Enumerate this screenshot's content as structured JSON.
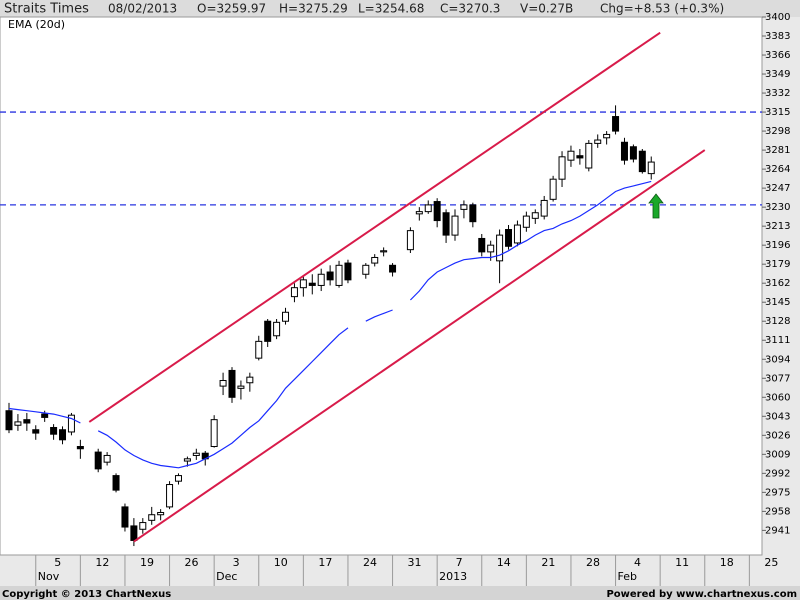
{
  "chart_data": {
    "type": "candlestick",
    "title": "Straits Times",
    "header_items": [
      "08/02/2013",
      "O=3259.97",
      "H=3275.29",
      "L=3254.68",
      "C=3270.3",
      "V=0.27B",
      "Chg=+8.53 (+0.3%)"
    ],
    "footer_left": "Copyright © 2013 ChartNexus",
    "footer_right": "Powered by www.chartnexus.com",
    "categories": [
      null,
      null,
      null,
      "5",
      null,
      null,
      null,
      null,
      "12",
      null,
      null,
      null,
      null,
      "19",
      null,
      null,
      null,
      null,
      "26",
      null,
      null,
      null,
      null,
      "3",
      null,
      null,
      null,
      null,
      "10",
      null,
      null,
      null,
      null,
      "17",
      null,
      null,
      null,
      null,
      "24",
      null,
      null,
      null,
      null,
      "31",
      null,
      null,
      null,
      null,
      "7",
      null,
      null,
      null,
      null,
      "14",
      null,
      null,
      null,
      null,
      "21",
      null,
      null,
      null,
      null,
      "28",
      null,
      null,
      null,
      null,
      "4",
      null,
      null,
      null,
      null,
      "11",
      null,
      null,
      null,
      null,
      "18",
      null,
      null,
      null,
      null,
      "25",
      null,
      null
    ],
    "month_labels": [
      null,
      null,
      null,
      "Nov",
      null,
      null,
      null,
      null,
      null,
      null,
      null,
      null,
      null,
      null,
      null,
      null,
      null,
      null,
      null,
      null,
      null,
      null,
      null,
      "Dec",
      null,
      null,
      null,
      null,
      null,
      null,
      null,
      null,
      null,
      null,
      null,
      null,
      null,
      null,
      null,
      null,
      null,
      null,
      null,
      null,
      null,
      null,
      null,
      null,
      "2013",
      null,
      null,
      null,
      null,
      null,
      null,
      null,
      null,
      null,
      null,
      null,
      null,
      null,
      null,
      null,
      null,
      null,
      null,
      null,
      "Feb",
      null,
      null,
      null,
      null,
      null,
      null,
      null,
      null,
      null,
      null,
      null,
      null,
      null,
      null,
      null,
      null,
      null
    ],
    "open": [
      3048,
      3035,
      3040,
      3031,
      3045,
      3033,
      3031,
      3029,
      3016,
      null,
      3011,
      3002,
      2990,
      2962,
      2945,
      2942,
      2950,
      2955,
      2962,
      2985,
      3003,
      3008,
      3010,
      3016,
      3070,
      3084,
      3068,
      3073,
      3095,
      3128,
      3115,
      3128,
      3150,
      3158,
      3162,
      3160,
      3172,
      3160,
      3180,
      null,
      3170,
      3180,
      3190,
      3178,
      null,
      3192,
      3224,
      3226,
      3235,
      3225,
      3205,
      3228,
      3232,
      3202,
      3190,
      3182,
      3210,
      3198,
      3212,
      3220,
      3222,
      3237,
      3255,
      3272,
      3276,
      3265,
      3287,
      3292,
      3311,
      3288,
      3284,
      3280,
      3259.97,
      null,
      null,
      null,
      null,
      null,
      null,
      null,
      null,
      null,
      null,
      null,
      null,
      null
    ],
    "high": [
      3055,
      3045,
      3046,
      3035,
      3048,
      3036,
      3034,
      3046,
      3022,
      null,
      3014,
      3011,
      2992,
      2965,
      2952,
      2952,
      2962,
      2960,
      2985,
      2992,
      3007,
      3014,
      3012,
      3044,
      3082,
      3087,
      3075,
      3082,
      3115,
      3130,
      3130,
      3140,
      3162,
      3168,
      3170,
      3175,
      3178,
      3182,
      3183,
      null,
      3180,
      3188,
      3194,
      3180,
      null,
      3212,
      3230,
      3236,
      3238,
      3228,
      3228,
      3236,
      3234,
      3206,
      3200,
      3210,
      3214,
      3218,
      3226,
      3228,
      3240,
      3258,
      3280,
      3285,
      3282,
      3290,
      3295,
      3298,
      3321,
      3292,
      3286,
      3282,
      3275.29,
      null,
      null,
      null,
      null,
      null,
      null,
      null,
      null,
      null,
      null,
      null,
      null,
      null
    ],
    "low": [
      3028,
      3030,
      3030,
      3022,
      3038,
      3022,
      3018,
      3026,
      3005,
      null,
      2993,
      2999,
      2975,
      2940,
      2927,
      2938,
      2946,
      2950,
      2960,
      2982,
      2998,
      3004,
      2999,
      3015,
      3062,
      3055,
      3058,
      3065,
      3093,
      3105,
      3112,
      3125,
      3145,
      3150,
      3152,
      3155,
      3160,
      3158,
      3162,
      null,
      3166,
      3177,
      3186,
      3168,
      null,
      3189,
      3218,
      3224,
      3212,
      3198,
      3200,
      3220,
      3212,
      3186,
      3182,
      3162,
      3192,
      3195,
      3208,
      3215,
      3219,
      3235,
      3248,
      3266,
      3268,
      3262,
      3283,
      3286,
      3295,
      3268,
      3270,
      3260,
      3254.68,
      null,
      null,
      null,
      null,
      null,
      null,
      null,
      null,
      null,
      null,
      null,
      null,
      null
    ],
    "close": [
      3031,
      3038,
      3037,
      3028,
      3042,
      3027,
      3022,
      3044,
      3014,
      null,
      2996,
      3008,
      2977,
      2944,
      2932,
      2948,
      2955,
      2957,
      2982,
      2990,
      3005,
      3010,
      3005,
      3040,
      3075,
      3060,
      3070,
      3078,
      3110,
      3110,
      3127,
      3136,
      3158,
      3165,
      3160,
      3170,
      3165,
      3178,
      3165,
      null,
      3178,
      3185,
      3191,
      3172,
      null,
      3209,
      3226,
      3232,
      3218,
      3205,
      3222,
      3232,
      3217,
      3190,
      3196,
      3205,
      3195,
      3214,
      3222,
      3225,
      3236,
      3255,
      3275,
      3280,
      3274,
      3287,
      3290,
      3295,
      3298,
      3272,
      3273,
      3261.77,
      3270.3,
      null,
      null,
      null,
      null,
      null,
      null,
      null,
      null,
      null,
      null,
      null,
      null,
      null
    ],
    "up_color": "#ffffff",
    "down_color": "#000000",
    "series": [
      {
        "name": "EMA (20d)",
        "color": "#1a2cff",
        "values": [
          3050,
          3049,
          3048,
          3047,
          3046,
          3045,
          3043,
          3041,
          3037,
          null,
          3030,
          3026,
          3020,
          3013,
          3008,
          3004,
          3001,
          2999,
          2998,
          2997,
          2999,
          3001,
          3005,
          3009,
          3014,
          3019,
          3026,
          3033,
          3039,
          3048,
          3057,
          3068,
          3076,
          3084,
          3092,
          3100,
          3108,
          3116,
          3122,
          null,
          3128,
          3132,
          3135,
          3138,
          null,
          3147,
          3155,
          3165,
          3172,
          3176,
          3180,
          3183,
          3184,
          3185,
          3185,
          3187,
          3191,
          3196,
          3200,
          3205,
          3209,
          3211,
          3215,
          3218,
          3222,
          3227,
          3232,
          3238,
          3244,
          3247,
          3249,
          3251,
          3253,
          null,
          null,
          null,
          null,
          null,
          null,
          null,
          null,
          null,
          null,
          null,
          null,
          null
        ]
      }
    ],
    "trendlines": [
      {
        "color": "#d81b4a",
        "points": [
          [
            9,
            3038
          ],
          [
            73,
            3386
          ]
        ]
      },
      {
        "color": "#d81b4a",
        "points": [
          [
            14,
            2931
          ],
          [
            78,
            3281
          ]
        ]
      }
    ],
    "hlines": {
      "color": "#2a35e0",
      "values": [
        3315,
        3232
      ]
    },
    "ylim": [
      2919,
      3400
    ],
    "yticks": [
      3400,
      3383,
      3366,
      3349,
      3332,
      3315,
      3298,
      3281,
      3264,
      3247,
      3230,
      3213,
      3196,
      3179,
      3162,
      3145,
      3128,
      3111,
      3094,
      3077,
      3060,
      3043,
      3026,
      3009,
      2992,
      2975,
      2958,
      2941
    ],
    "y_axis_side": "right",
    "grid": false
  }
}
